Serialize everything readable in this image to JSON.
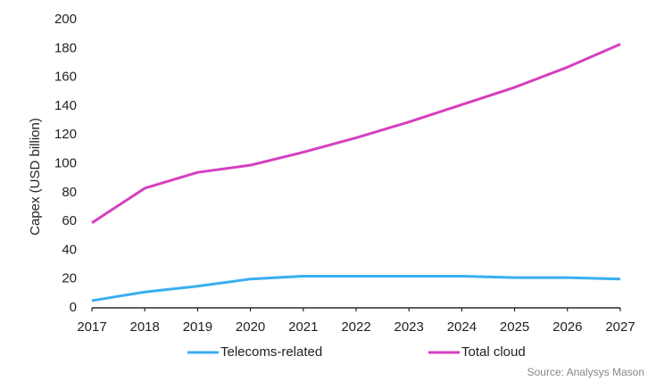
{
  "chart_data": {
    "type": "line",
    "y_label": "Capex (USD billion)",
    "x": [
      2017,
      2018,
      2019,
      2020,
      2021,
      2022,
      2023,
      2024,
      2025,
      2026,
      2027
    ],
    "xlim": [
      2017,
      2027
    ],
    "xticks": [
      2017,
      2018,
      2019,
      2020,
      2021,
      2022,
      2023,
      2024,
      2025,
      2026,
      2027
    ],
    "ylim": [
      0,
      200
    ],
    "yticks": [
      0,
      20,
      40,
      60,
      80,
      100,
      120,
      140,
      160,
      180,
      200
    ],
    "grid": false,
    "legend": "bottom",
    "series": [
      {
        "name": "Telecoms-related",
        "color": "#3aaef0",
        "values": [
          5,
          11,
          15,
          20,
          22,
          22,
          22,
          22,
          21,
          21,
          20
        ]
      },
      {
        "name": "Total cloud",
        "color": "#d63fbf",
        "values": [
          59,
          83,
          94,
          99,
          108,
          118,
          129,
          141,
          153,
          167,
          183
        ]
      }
    ],
    "source": "Source: Analysys Mason"
  }
}
